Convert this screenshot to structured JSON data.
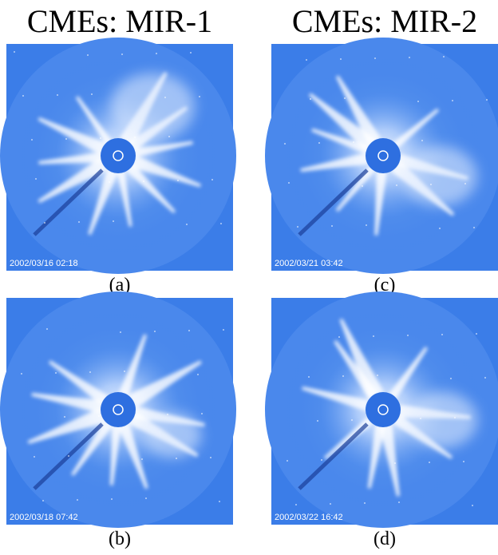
{
  "figure": {
    "columns": [
      {
        "title": "CMEs: MIR-1",
        "panels": [
          {
            "timestamp": "2002/03/16 02:18",
            "label": "(a)"
          },
          {
            "timestamp": "2002/03/18 07:42",
            "label": "(b)"
          }
        ]
      },
      {
        "title": "CMEs: MIR-2",
        "panels": [
          {
            "timestamp": "2002/03/21 03:42",
            "label": "(c)"
          },
          {
            "timestamp": "2002/03/22 16:42",
            "label": "(d)"
          }
        ]
      }
    ]
  }
}
